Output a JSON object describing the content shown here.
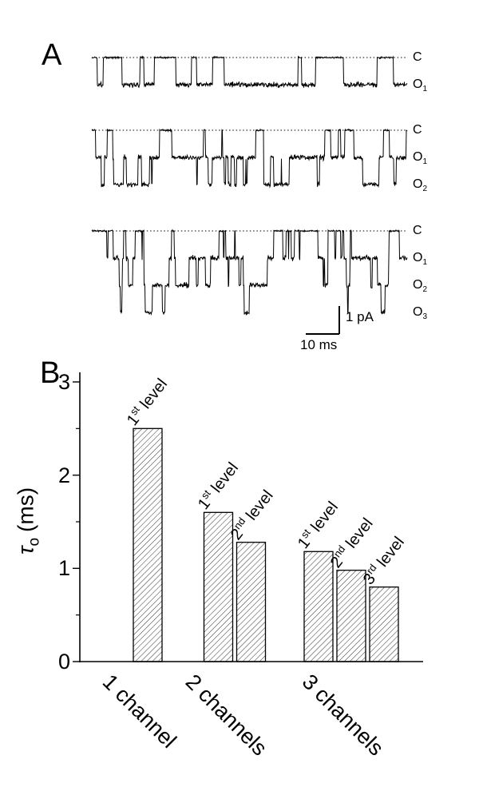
{
  "panels": {
    "a_label": "A",
    "b_label": "B"
  },
  "panel_a": {
    "traces": [
      {
        "n_channels": 1,
        "labels": [
          "C",
          "O1"
        ]
      },
      {
        "n_channels": 2,
        "labels": [
          "C",
          "O1",
          "O2"
        ]
      },
      {
        "n_channels": 3,
        "labels": [
          "C",
          "O1",
          "O2",
          "O3"
        ]
      }
    ],
    "scale_bar": {
      "vertical": "1 pA",
      "horizontal": "10 ms"
    }
  },
  "chart_data": {
    "type": "bar",
    "title": "",
    "ylabel": {
      "symbol": "τ",
      "subscript": "o",
      "unit": "(ms)"
    },
    "ylim": [
      0,
      3
    ],
    "yticks": [
      "0",
      "1",
      "2",
      "3"
    ],
    "grid": false,
    "bar_style": "white with diagonal hatching, black outline",
    "colors": {
      "ink": "#000000",
      "background": "#ffffff"
    },
    "categories": [
      "1 channel",
      "2 channels",
      "3 channels"
    ],
    "groups": [
      {
        "category": "1 channel",
        "bars": [
          {
            "label": "1st level",
            "num": "1",
            "ordinal": "st",
            "word": "level",
            "value": 2.5
          }
        ]
      },
      {
        "category": "2 channels",
        "bars": [
          {
            "label": "1st level",
            "num": "1",
            "ordinal": "st",
            "word": "level",
            "value": 1.6
          },
          {
            "label": "2nd level",
            "num": "2",
            "ordinal": "nd",
            "word": "level",
            "value": 1.28
          }
        ]
      },
      {
        "category": "3 channels",
        "bars": [
          {
            "label": "1st level",
            "num": "1",
            "ordinal": "st",
            "word": "level",
            "value": 1.18
          },
          {
            "label": "2nd level",
            "num": "2",
            "ordinal": "nd",
            "word": "level",
            "value": 0.98
          },
          {
            "label": "3rd level",
            "num": "3",
            "ordinal": "rd",
            "word": "level",
            "value": 0.8
          }
        ]
      }
    ]
  }
}
